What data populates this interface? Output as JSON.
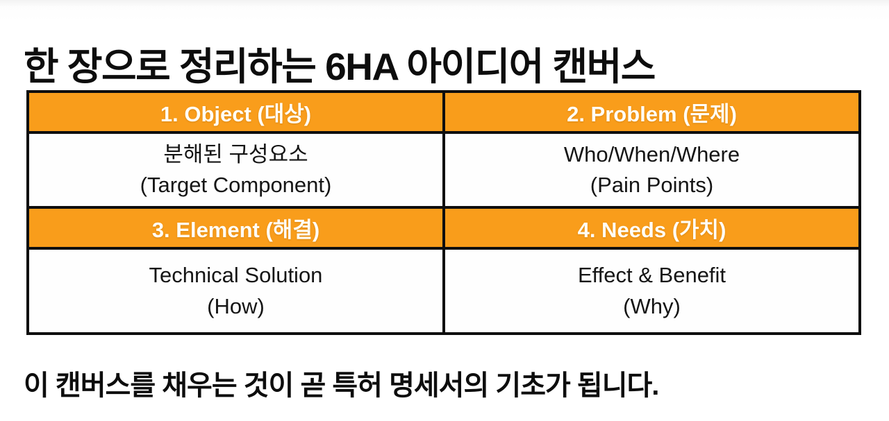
{
  "page": {
    "title": "한 장으로 정리하는 6HA 아이디어 캔버스",
    "footer": "이 캔버스를 채우는 것이 곧 특허 명세서의 기초가 됩니다."
  },
  "canvas_table": {
    "quadrants": [
      {
        "header": "1. Object (대상)",
        "line1": "분해된 구성요소",
        "line2": "(Target Component)"
      },
      {
        "header": "2. Problem (문제)",
        "line1": "Who/When/Where",
        "line2": "(Pain Points)"
      },
      {
        "header": "3. Element (해결)",
        "line1": "Technical Solution",
        "line2": "(How)"
      },
      {
        "header": "4. Needs (가치)",
        "line1": "Effect & Benefit",
        "line2": "(Why)"
      }
    ],
    "colors": {
      "header_bg": "#f99d1b",
      "header_text": "#ffffff",
      "border": "#0e0e0e",
      "cell_bg": "#ffffff",
      "cell_text": "#151515",
      "title_text": "#0d0d0d"
    }
  }
}
